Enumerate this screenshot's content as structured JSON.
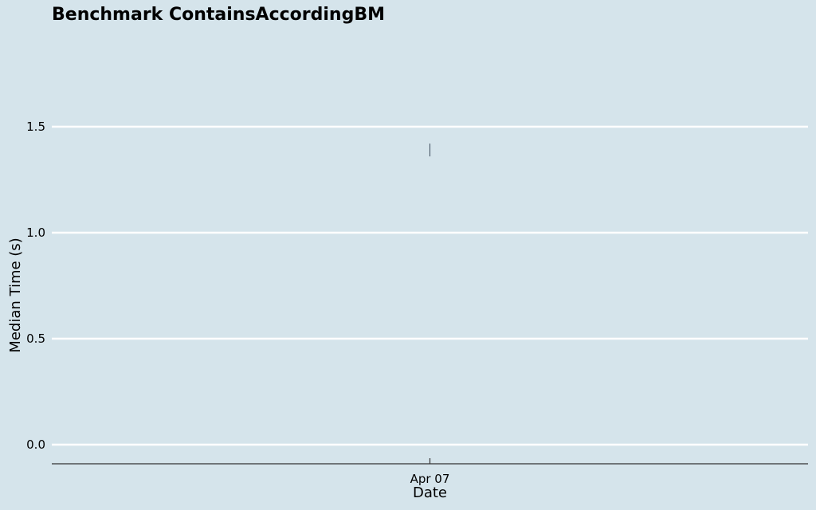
{
  "chart_data": {
    "type": "line",
    "title": "Benchmark ContainsAccordingBM",
    "xlabel": "Date",
    "ylabel": "Median Time (s)",
    "x_tick_labels": [
      "Apr 07"
    ],
    "y_ticks": [
      0.0,
      0.5,
      1.0,
      1.5
    ],
    "y_tick_labels": [
      "0.0",
      "0.5",
      "1.0",
      "1.5"
    ],
    "ylim": [
      -0.09,
      1.88
    ],
    "grid": true,
    "colors": {
      "background": "#d5e4eb",
      "grid": "#ffffff",
      "axis": "#333333",
      "series": "#3b4a5a"
    },
    "series": [
      {
        "x": [
          "Apr 07"
        ],
        "y_low": [
          1.36
        ],
        "y_high": [
          1.42
        ]
      }
    ]
  }
}
